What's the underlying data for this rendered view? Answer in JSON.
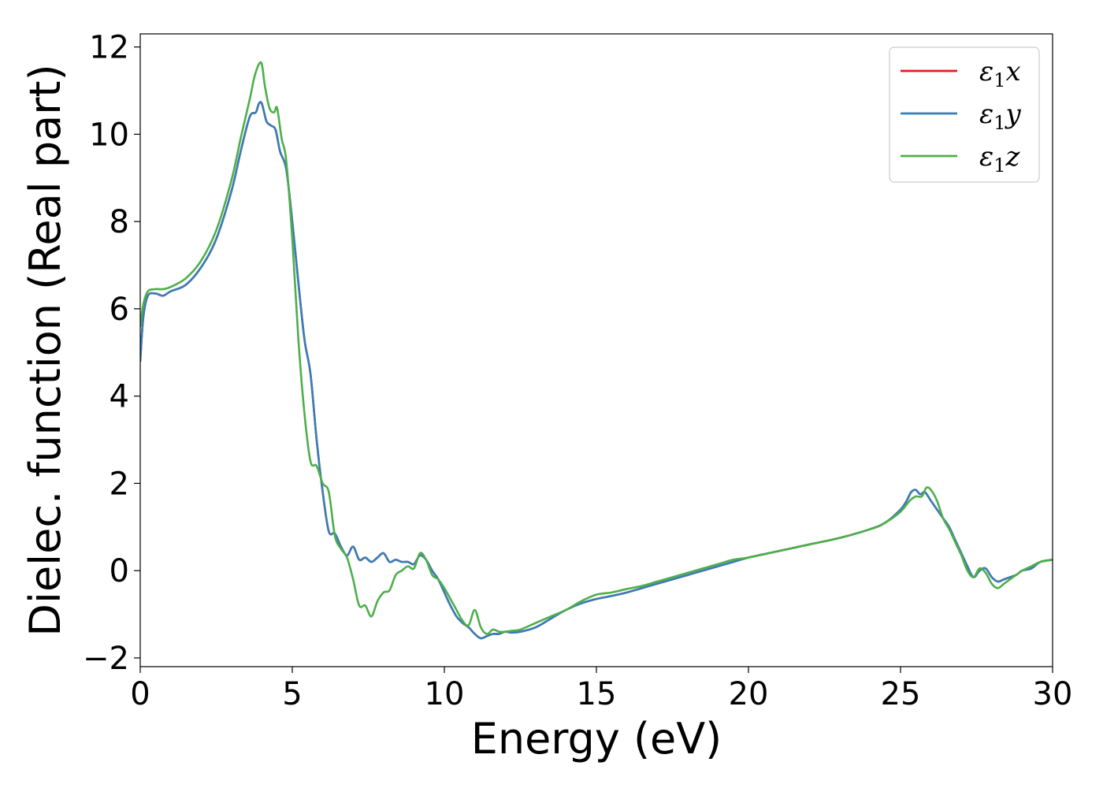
{
  "chart_data": {
    "type": "line",
    "title": "",
    "xlabel": "Energy (eV)",
    "ylabel": "Dielec. function (Real part)",
    "xlim": [
      0,
      30
    ],
    "ylim": [
      -2.2,
      12.3
    ],
    "xticks": [
      0,
      5,
      10,
      15,
      20,
      25,
      30
    ],
    "xtick_labels": [
      "0",
      "5",
      "10",
      "15",
      "20",
      "25",
      "30"
    ],
    "yticks": [
      -2,
      0,
      2,
      4,
      6,
      8,
      10,
      12
    ],
    "ytick_labels": [
      "−2",
      "0",
      "2",
      "4",
      "6",
      "8",
      "10",
      "12"
    ],
    "grid": false,
    "legend": {
      "position": "top-right",
      "entries": [
        {
          "label": "ε₁x",
          "base": "ε",
          "sub": "1",
          "axis": "x",
          "color": "#e41a1c"
        },
        {
          "label": "ε₁y",
          "base": "ε",
          "sub": "1",
          "axis": "y",
          "color": "#377eb8"
        },
        {
          "label": "ε₁z",
          "base": "ε",
          "sub": "1",
          "axis": "z",
          "color": "#4daf4a"
        }
      ]
    },
    "series": [
      {
        "name": "ε₁x",
        "color": "#e41a1c",
        "x": [
          0,
          0.1,
          0.25,
          0.5,
          0.75,
          1.0,
          1.5,
          2.0,
          2.5,
          3.0,
          3.3,
          3.6,
          3.8,
          3.9,
          4.0,
          4.15,
          4.3,
          4.45,
          4.6,
          4.8,
          5.0,
          5.2,
          5.4,
          5.6,
          5.8,
          6.0,
          6.2,
          6.4,
          6.6,
          6.8,
          7.0,
          7.2,
          7.4,
          7.6,
          7.8,
          8.0,
          8.2,
          8.4,
          8.6,
          8.8,
          9.0,
          9.2,
          9.4,
          9.6,
          9.8,
          10.0,
          10.2,
          10.4,
          10.6,
          10.8,
          11.0,
          11.2,
          11.4,
          11.6,
          11.8,
          12.0,
          12.2,
          12.5,
          13.0,
          13.5,
          14.0,
          14.5,
          15.0,
          15.5,
          16.0,
          16.5,
          17.0,
          17.5,
          18.0,
          18.5,
          19.0,
          19.5,
          20.0,
          21.0,
          22.0,
          23.0,
          24.0,
          24.5,
          25.0,
          25.2,
          25.35,
          25.5,
          25.65,
          25.8,
          26.0,
          26.2,
          26.4,
          26.6,
          26.8,
          27.0,
          27.2,
          27.4,
          27.6,
          27.8,
          28.0,
          28.2,
          28.4,
          28.6,
          28.8,
          29.0,
          29.3,
          29.6,
          30.0
        ],
        "y": [
          4.8,
          5.8,
          6.3,
          6.35,
          6.3,
          6.4,
          6.55,
          6.95,
          7.6,
          8.7,
          9.6,
          10.4,
          10.5,
          10.7,
          10.7,
          10.3,
          10.2,
          10.1,
          9.6,
          9.2,
          8.0,
          6.6,
          5.3,
          4.5,
          3.0,
          1.8,
          0.9,
          0.85,
          0.55,
          0.35,
          0.55,
          0.25,
          0.3,
          0.2,
          0.3,
          0.4,
          0.2,
          0.25,
          0.2,
          0.2,
          0.15,
          0.35,
          0.25,
          0.0,
          -0.2,
          -0.5,
          -0.8,
          -1.05,
          -1.2,
          -1.3,
          -1.45,
          -1.55,
          -1.5,
          -1.45,
          -1.45,
          -1.4,
          -1.42,
          -1.4,
          -1.3,
          -1.1,
          -0.9,
          -0.75,
          -0.65,
          -0.58,
          -0.5,
          -0.4,
          -0.3,
          -0.2,
          -0.1,
          0.0,
          0.1,
          0.2,
          0.3,
          0.45,
          0.6,
          0.75,
          0.95,
          1.1,
          1.4,
          1.6,
          1.8,
          1.85,
          1.75,
          1.8,
          1.6,
          1.4,
          1.2,
          1.0,
          0.7,
          0.4,
          0.1,
          -0.15,
          0.0,
          0.05,
          -0.15,
          -0.25,
          -0.2,
          -0.15,
          -0.1,
          0.0,
          0.05,
          0.2,
          0.25
        ]
      },
      {
        "name": "ε₁y",
        "color": "#377eb8",
        "x": [
          0,
          0.1,
          0.25,
          0.5,
          0.75,
          1.0,
          1.5,
          2.0,
          2.5,
          3.0,
          3.3,
          3.6,
          3.8,
          3.9,
          4.0,
          4.15,
          4.3,
          4.45,
          4.6,
          4.8,
          5.0,
          5.2,
          5.4,
          5.6,
          5.8,
          6.0,
          6.2,
          6.4,
          6.6,
          6.8,
          7.0,
          7.2,
          7.4,
          7.6,
          7.8,
          8.0,
          8.2,
          8.4,
          8.6,
          8.8,
          9.0,
          9.2,
          9.4,
          9.6,
          9.8,
          10.0,
          10.2,
          10.4,
          10.6,
          10.8,
          11.0,
          11.2,
          11.4,
          11.6,
          11.8,
          12.0,
          12.2,
          12.5,
          13.0,
          13.5,
          14.0,
          14.5,
          15.0,
          15.5,
          16.0,
          16.5,
          17.0,
          17.5,
          18.0,
          18.5,
          19.0,
          19.5,
          20.0,
          21.0,
          22.0,
          23.0,
          24.0,
          24.5,
          25.0,
          25.2,
          25.35,
          25.5,
          25.65,
          25.8,
          26.0,
          26.2,
          26.4,
          26.6,
          26.8,
          27.0,
          27.2,
          27.4,
          27.6,
          27.8,
          28.0,
          28.2,
          28.4,
          28.6,
          28.8,
          29.0,
          29.3,
          29.6,
          30.0
        ],
        "y": [
          4.8,
          5.8,
          6.3,
          6.35,
          6.3,
          6.4,
          6.55,
          6.95,
          7.6,
          8.7,
          9.6,
          10.4,
          10.5,
          10.7,
          10.7,
          10.3,
          10.2,
          10.1,
          9.6,
          9.2,
          8.0,
          6.6,
          5.3,
          4.5,
          3.0,
          1.8,
          0.9,
          0.85,
          0.55,
          0.35,
          0.55,
          0.25,
          0.3,
          0.2,
          0.3,
          0.4,
          0.2,
          0.25,
          0.2,
          0.2,
          0.15,
          0.35,
          0.25,
          0.0,
          -0.2,
          -0.5,
          -0.8,
          -1.05,
          -1.2,
          -1.3,
          -1.45,
          -1.55,
          -1.5,
          -1.45,
          -1.45,
          -1.4,
          -1.42,
          -1.4,
          -1.3,
          -1.1,
          -0.9,
          -0.75,
          -0.65,
          -0.58,
          -0.5,
          -0.4,
          -0.3,
          -0.2,
          -0.1,
          0.0,
          0.1,
          0.2,
          0.3,
          0.45,
          0.6,
          0.75,
          0.95,
          1.1,
          1.4,
          1.6,
          1.8,
          1.85,
          1.75,
          1.8,
          1.6,
          1.4,
          1.2,
          1.0,
          0.7,
          0.4,
          0.1,
          -0.15,
          0.0,
          0.05,
          -0.15,
          -0.25,
          -0.2,
          -0.15,
          -0.1,
          0.0,
          0.05,
          0.2,
          0.25
        ]
      },
      {
        "name": "ε₁z",
        "color": "#4daf4a",
        "x": [
          0,
          0.1,
          0.25,
          0.5,
          0.75,
          1.0,
          1.5,
          2.0,
          2.5,
          3.0,
          3.3,
          3.6,
          3.75,
          3.9,
          4.0,
          4.1,
          4.25,
          4.4,
          4.5,
          4.65,
          4.8,
          5.0,
          5.2,
          5.4,
          5.6,
          5.8,
          6.0,
          6.2,
          6.4,
          6.6,
          6.8,
          7.0,
          7.2,
          7.4,
          7.6,
          7.8,
          8.0,
          8.2,
          8.4,
          8.6,
          8.8,
          9.0,
          9.2,
          9.4,
          9.6,
          9.8,
          10.0,
          10.2,
          10.4,
          10.6,
          10.8,
          11.0,
          11.2,
          11.4,
          11.6,
          11.8,
          12.0,
          12.2,
          12.5,
          13.0,
          13.5,
          14.0,
          14.5,
          15.0,
          15.5,
          16.0,
          16.5,
          17.0,
          17.5,
          18.0,
          18.5,
          19.0,
          19.5,
          20.0,
          21.0,
          22.0,
          23.0,
          24.0,
          24.5,
          25.0,
          25.3,
          25.5,
          25.7,
          25.85,
          26.0,
          26.2,
          26.4,
          26.6,
          26.8,
          27.0,
          27.2,
          27.4,
          27.6,
          27.8,
          28.0,
          28.2,
          28.4,
          28.6,
          28.8,
          29.0,
          29.3,
          29.6,
          30.0
        ],
        "y": [
          5.6,
          6.1,
          6.4,
          6.45,
          6.45,
          6.5,
          6.7,
          7.1,
          7.8,
          8.95,
          9.9,
          10.8,
          11.3,
          11.6,
          11.6,
          11.1,
          10.6,
          10.5,
          10.6,
          9.9,
          9.4,
          7.6,
          5.3,
          3.6,
          2.5,
          2.4,
          2.0,
          1.8,
          0.8,
          0.5,
          0.3,
          -0.2,
          -0.8,
          -0.8,
          -1.05,
          -0.7,
          -0.5,
          -0.45,
          -0.1,
          0.0,
          0.1,
          0.05,
          0.4,
          0.25,
          -0.1,
          -0.2,
          -0.4,
          -0.65,
          -0.9,
          -1.15,
          -1.25,
          -0.9,
          -1.3,
          -1.45,
          -1.35,
          -1.4,
          -1.4,
          -1.38,
          -1.35,
          -1.2,
          -1.05,
          -0.9,
          -0.7,
          -0.55,
          -0.5,
          -0.42,
          -0.35,
          -0.25,
          -0.15,
          -0.05,
          0.05,
          0.15,
          0.25,
          0.3,
          0.45,
          0.6,
          0.75,
          0.95,
          1.1,
          1.35,
          1.6,
          1.7,
          1.7,
          1.9,
          1.85,
          1.6,
          1.2,
          0.95,
          0.65,
          0.35,
          0.0,
          -0.15,
          0.05,
          -0.05,
          -0.3,
          -0.4,
          -0.3,
          -0.2,
          -0.1,
          0.0,
          0.1,
          0.2,
          0.25
        ]
      }
    ]
  }
}
